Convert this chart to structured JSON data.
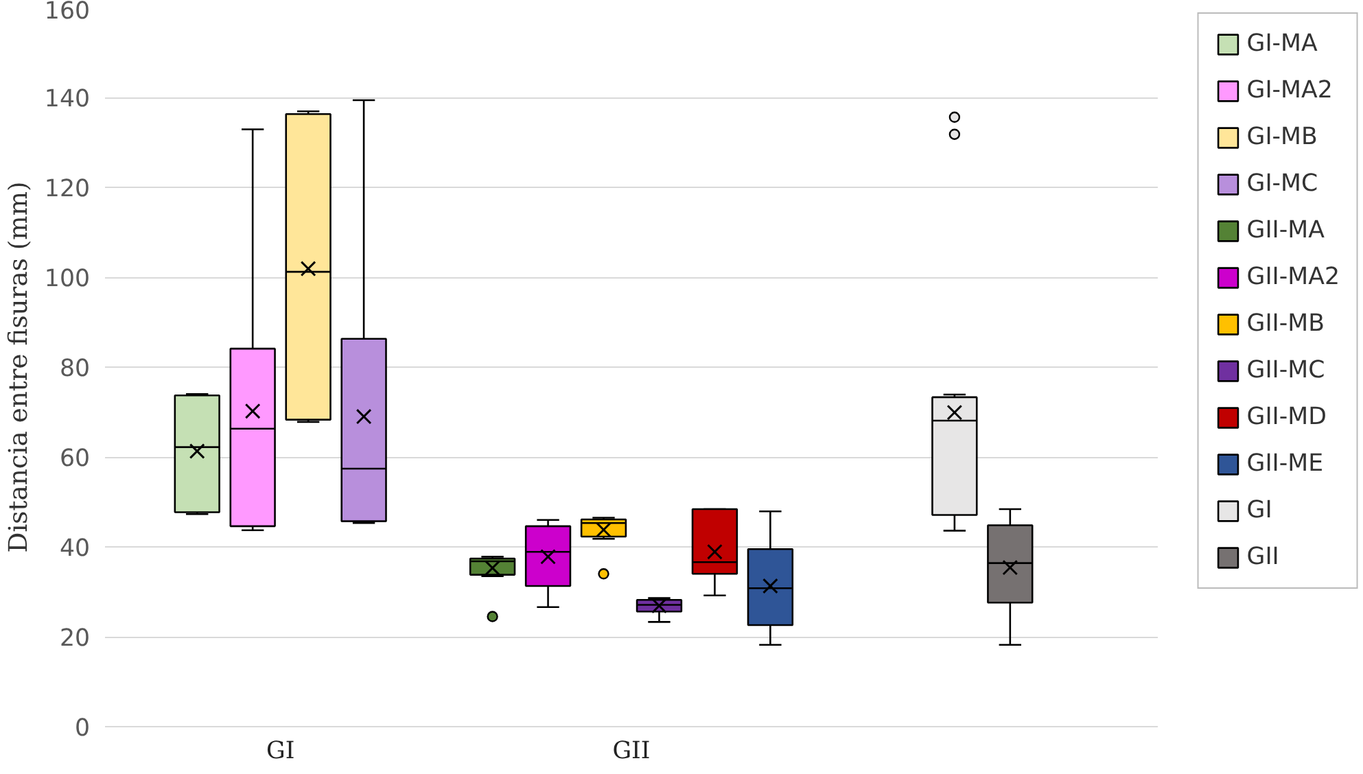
{
  "chart_data": {
    "type": "box",
    "ylabel": "Distancia entre fisuras (mm)",
    "categories": [
      "GI",
      "GII",
      null
    ],
    "ylim": [
      0,
      160
    ],
    "yticks": [
      0,
      20,
      40,
      60,
      80,
      100,
      120,
      140,
      160
    ],
    "grid": "y",
    "legend": "right",
    "marker": "cross",
    "series": [
      {
        "name": "GI-MA",
        "color": "#c5e0b4",
        "boxes": [
          {
            "low": 47.3,
            "q1": 47.7,
            "median": 62.2,
            "q3": 73.7,
            "high": 74,
            "mean": 61.3
          },
          null,
          null
        ]
      },
      {
        "name": "GI-MA2",
        "color": "#ff99ff",
        "boxes": [
          {
            "low": 43.7,
            "q1": 44.6,
            "median": 66.3,
            "q3": 84.1,
            "high": 132.9,
            "mean": 70.2
          },
          null,
          null
        ]
      },
      {
        "name": "GI-MB",
        "color": "#ffe699",
        "boxes": [
          {
            "low": 67.8,
            "q1": 68.3,
            "median": 101.2,
            "q3": 136.3,
            "high": 136.9,
            "mean": 101.9
          },
          null,
          null
        ]
      },
      {
        "name": "GI-MC",
        "color": "#b88fdc",
        "boxes": [
          {
            "low": 45.3,
            "q1": 45.7,
            "median": 57.4,
            "q3": 86.3,
            "high": 139.4,
            "mean": 69
          },
          null,
          null
        ]
      },
      {
        "name": "GII-MA",
        "color": "#548235",
        "boxes": [
          null,
          {
            "low": 33.5,
            "q1": 33.8,
            "median": 36.8,
            "q3": 37.4,
            "high": 37.8,
            "mean": 35.3,
            "outliers": [
              24.5
            ]
          },
          null
        ]
      },
      {
        "name": "GII-MA2",
        "color": "#cc00cc",
        "boxes": [
          null,
          {
            "low": 26.6,
            "q1": 31.3,
            "median": 38.9,
            "q3": 44.6,
            "high": 46,
            "mean": 37.8
          },
          null
        ]
      },
      {
        "name": "GII-MB",
        "color": "#ffc000",
        "boxes": [
          null,
          {
            "low": 41.8,
            "q1": 42.3,
            "median": 45.3,
            "q3": 46.1,
            "high": 46.5,
            "mean": 43.8,
            "outliers": [
              34
            ]
          },
          null
        ]
      },
      {
        "name": "GII-MC",
        "color": "#7030a0",
        "boxes": [
          null,
          {
            "low": 23.3,
            "q1": 25.6,
            "median": 27.1,
            "q3": 28.2,
            "high": 28.6,
            "mean": 26.9
          },
          null
        ]
      },
      {
        "name": "GII-MD",
        "color": "#c00000",
        "boxes": [
          null,
          {
            "low": 29.2,
            "q1": 34,
            "median": 36.6,
            "q3": 48.4,
            "high": 48.4,
            "mean": 38.9
          },
          null
        ]
      },
      {
        "name": "GII-ME",
        "color": "#2f5597",
        "boxes": [
          null,
          {
            "low": 18.2,
            "q1": 22.6,
            "median": 30.8,
            "q3": 39.5,
            "high": 47.9,
            "mean": 31.3
          },
          null
        ]
      },
      {
        "name": "GI",
        "color": "#e7e6e6",
        "boxes": [
          null,
          null,
          {
            "low": 43.6,
            "q1": 47.1,
            "median": 68.1,
            "q3": 73.3,
            "high": 73.9,
            "mean": 69.9,
            "outliers": [
              135.6,
              131.8
            ]
          }
        ]
      },
      {
        "name": "GII",
        "color": "#767171",
        "boxes": [
          null,
          null,
          {
            "low": 18.2,
            "q1": 27.6,
            "median": 36.4,
            "q3": 44.8,
            "high": 48.4,
            "mean": 35.4
          }
        ]
      }
    ]
  }
}
